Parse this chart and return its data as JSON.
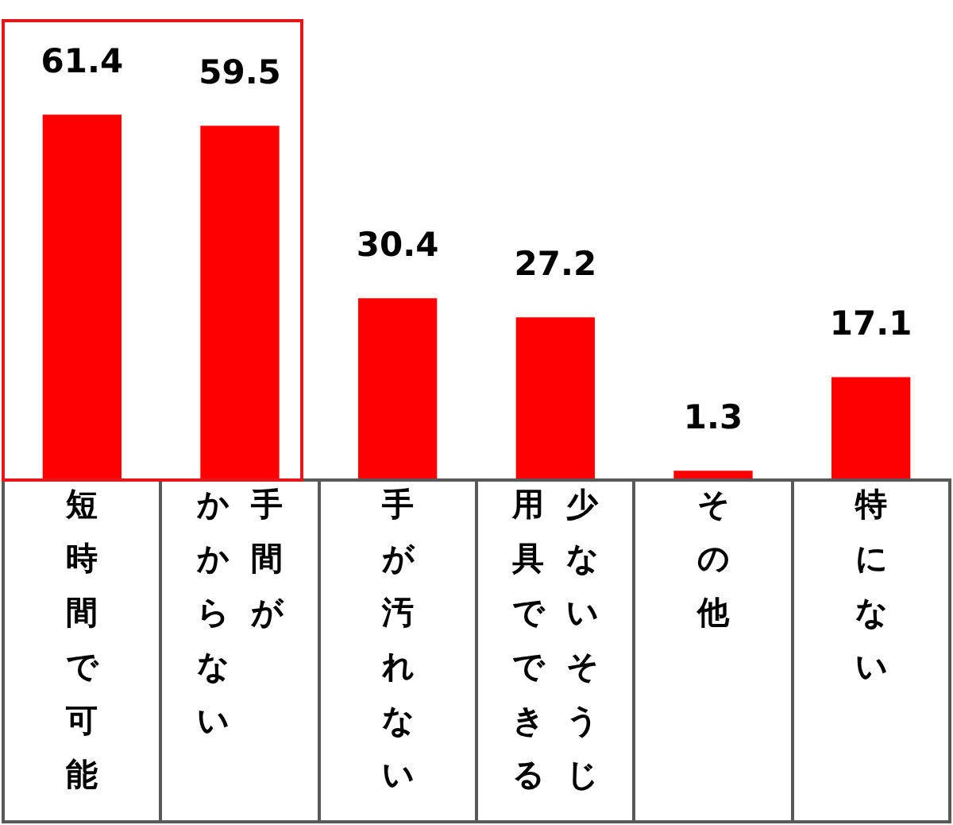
{
  "chart_data": {
    "type": "bar",
    "categories": [
      "短時間で可能",
      "手間がかからない",
      "手が汚れない",
      "少ないそうじ用具でできる",
      "その他",
      "特にない"
    ],
    "values": [
      61.4,
      59.5,
      30.4,
      27.2,
      1.3,
      17.1
    ],
    "color": "#ff0000",
    "data_labels": true
  }
}
